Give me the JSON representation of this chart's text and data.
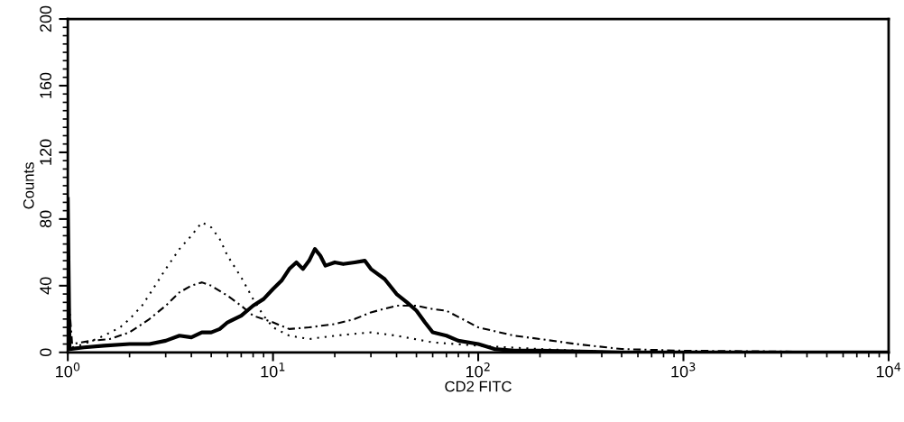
{
  "chart_data": {
    "type": "line",
    "xlabel": "CD2 FITC",
    "ylabel": "Counts",
    "log": "x",
    "grid": false,
    "legend": false,
    "marker": "none",
    "xlim": [
      1,
      10000
    ],
    "ylim": [
      0,
      200
    ],
    "xticks": [
      {
        "value": 1,
        "label": "10$^{0}$"
      },
      {
        "value": 10,
        "label": "10$^{1}$"
      },
      {
        "value": 100,
        "label": "10$^{2}$"
      },
      {
        "value": 1000,
        "label": "10$^{3}$"
      },
      {
        "value": 10000,
        "label": "10$^{4}$"
      }
    ],
    "yticks": [
      0,
      40,
      80,
      120,
      160,
      200
    ],
    "series": [
      {
        "color": "#000000",
        "line_style": "solid",
        "x": [
          1.0,
          1.02,
          1.2,
          1.5,
          2,
          2.5,
          3,
          3.5,
          4,
          4.5,
          5,
          5.5,
          6,
          7,
          8,
          9,
          10,
          11,
          12,
          13,
          14,
          15,
          16,
          17,
          18,
          20,
          22,
          25,
          28,
          30,
          35,
          40,
          45,
          50,
          55,
          60,
          70,
          80,
          100,
          120,
          150,
          200,
          500,
          1000,
          10000
        ],
        "values": [
          92,
          2,
          3,
          4,
          5,
          5,
          7,
          10,
          9,
          12,
          12,
          14,
          18,
          22,
          28,
          32,
          38,
          43,
          50,
          54,
          50,
          55,
          62,
          58,
          52,
          54,
          53,
          54,
          55,
          50,
          44,
          35,
          30,
          25,
          18,
          12,
          10,
          7,
          5,
          2,
          1,
          1,
          0,
          0,
          0
        ]
      },
      {
        "color": "#000000",
        "line_style": "dotted",
        "x": [
          1.05,
          1.2,
          1.5,
          1.8,
          2,
          2.3,
          2.6,
          3,
          3.5,
          4,
          4.5,
          5,
          5.5,
          6,
          7,
          8,
          9,
          10,
          12,
          15,
          20,
          30,
          40,
          60,
          100,
          200,
          500,
          1000,
          10000
        ],
        "values": [
          3,
          5,
          10,
          15,
          20,
          28,
          38,
          50,
          62,
          70,
          78,
          75,
          68,
          58,
          45,
          32,
          22,
          15,
          10,
          8,
          10,
          12,
          10,
          6,
          4,
          2,
          0,
          0,
          0
        ]
      },
      {
        "color": "#000000",
        "line_style": "dashed",
        "x": [
          1.0,
          1.05,
          1.3,
          1.6,
          2,
          2.5,
          3,
          3.5,
          4,
          4.5,
          5,
          6,
          7,
          8,
          10,
          12,
          15,
          20,
          25,
          30,
          40,
          50,
          60,
          70,
          100,
          150,
          200,
          300,
          500,
          1000,
          10000
        ],
        "values": [
          40,
          5,
          7,
          8,
          12,
          20,
          28,
          36,
          40,
          42,
          40,
          34,
          28,
          22,
          18,
          14,
          15,
          17,
          20,
          24,
          28,
          28,
          26,
          25,
          15,
          10,
          8,
          5,
          2,
          1,
          0
        ]
      }
    ]
  }
}
